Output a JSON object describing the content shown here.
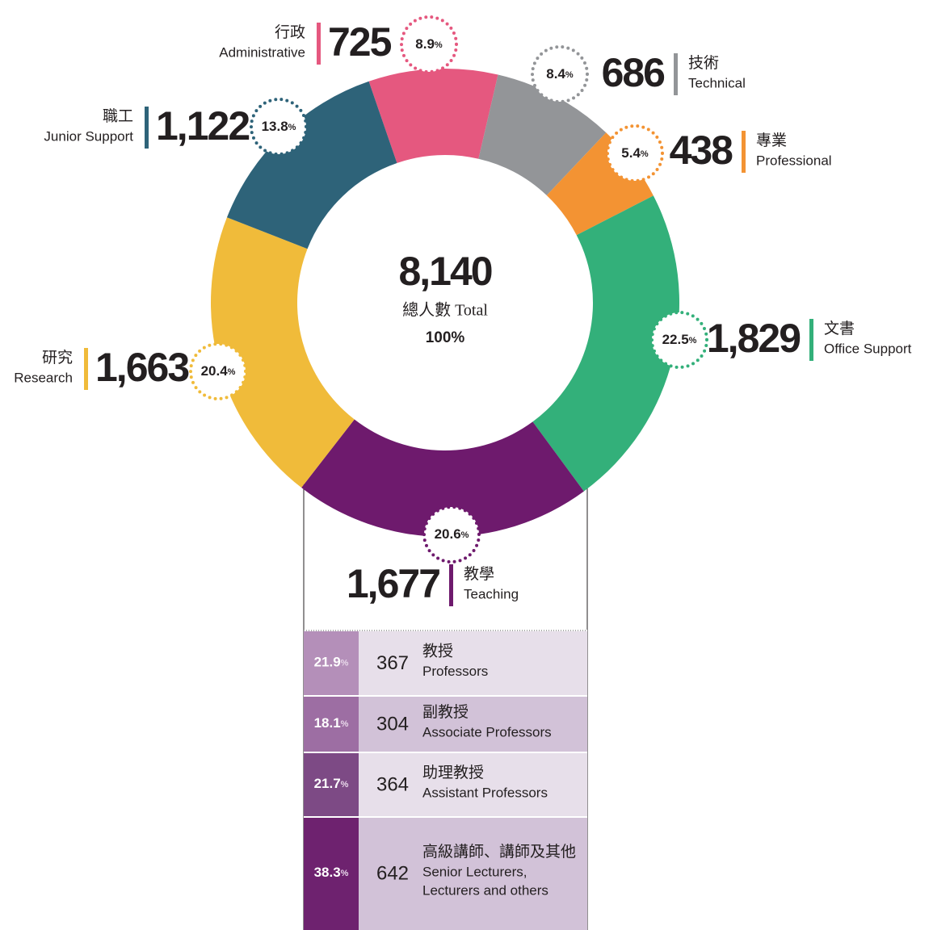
{
  "chart_data": {
    "type": "donut",
    "categories": [
      "Administrative",
      "Technical",
      "Professional",
      "Office Support",
      "Teaching",
      "Research",
      "Junior Support"
    ],
    "categories_zh": [
      "行政",
      "技術",
      "專業",
      "文書",
      "教學",
      "研究",
      "職工"
    ],
    "values": [
      725,
      686,
      438,
      1829,
      1677,
      1663,
      1122
    ],
    "value_labels": [
      "725",
      "686",
      "438",
      "1,829",
      "1,677",
      "1,663",
      "1,122"
    ],
    "percents": [
      8.9,
      8.4,
      5.4,
      22.5,
      20.6,
      20.4,
      13.8
    ],
    "percent_sign": "%",
    "colors": [
      "#e5587f",
      "#939598",
      "#f39333",
      "#33b07a",
      "#6e1a6d",
      "#f0bb3a",
      "#2e6379"
    ],
    "total": 8140,
    "total_label": "8,140",
    "center_label": "總人數 Total",
    "center_percent": 100
  },
  "breakdown": {
    "rows": [
      {
        "percent": 21.9,
        "count": 367,
        "name_zh": "教授",
        "name_en": [
          "Professors"
        ]
      },
      {
        "percent": 18.1,
        "count": 304,
        "name_zh": "副教授",
        "name_en": [
          "Associate Professors"
        ]
      },
      {
        "percent": 21.7,
        "count": 364,
        "name_zh": "助理教授",
        "name_en": [
          "Assistant Professors"
        ]
      },
      {
        "percent": 38.3,
        "count": 642,
        "name_zh": "高級講師、講師及其他",
        "name_en": [
          "Senior Lecturers,",
          "Lecturers and others"
        ]
      }
    ]
  }
}
